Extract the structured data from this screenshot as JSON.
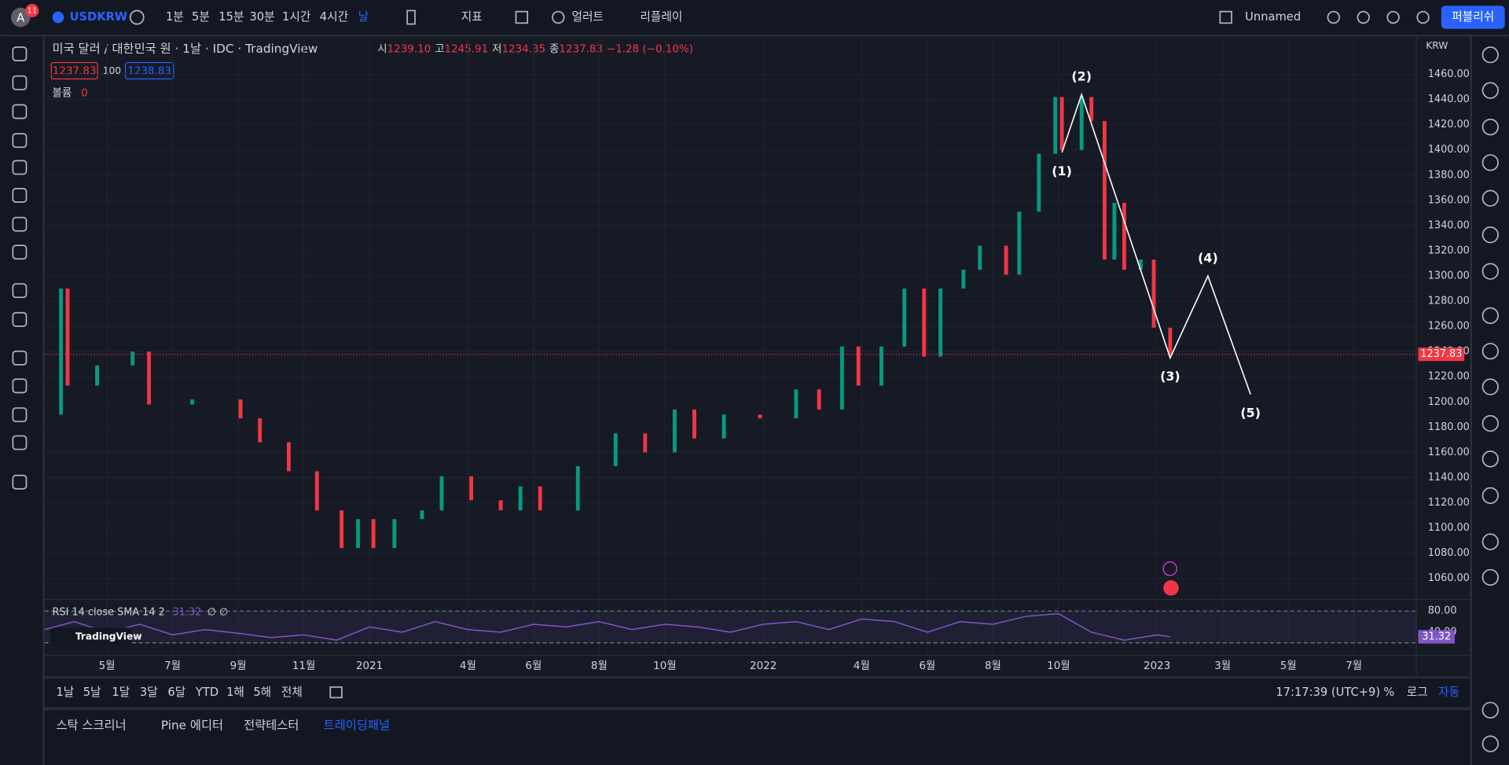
{
  "toolbar": {
    "avatar": "A",
    "badge": "11",
    "symbol": "USDKRW",
    "intervals": [
      "1분",
      "5분",
      "15분",
      "30분",
      "1시간",
      "4시간",
      "날"
    ],
    "indicators": "지표",
    "alert": "얼러트",
    "replay": "리플레이",
    "layout": "Unnamed",
    "publish": "퍼블리쉬"
  },
  "legend": {
    "title": "미국 달러 / 대한민국 원 · 1날 · IDC · TradingView",
    "ohlc": [
      {
        "label": "시",
        "value": "1239.10"
      },
      {
        "label": "고",
        "value": "1245.91"
      },
      {
        "label": "저",
        "value": "1234.35"
      },
      {
        "label": "종",
        "value": "1237.83"
      }
    ],
    "change": "−1.28 (−0.10%)",
    "bid": "1237.83",
    "spread": "100",
    "ask": "1238.83",
    "volume_label": "볼륨",
    "volume": "0"
  },
  "chart": {
    "type": "candlestick",
    "currency": "KRW",
    "xlim": [
      2.1,
      43.9
    ],
    "ylim": [
      1044,
      1490
    ],
    "yticks": [
      {
        "value": 1060,
        "label": "1060.00"
      },
      {
        "value": 1080,
        "label": "1080.00"
      },
      {
        "value": 1100,
        "label": "1100.00"
      },
      {
        "value": 1120,
        "label": "1120.00"
      },
      {
        "value": 1140,
        "label": "1140.00"
      },
      {
        "value": 1160,
        "label": "1160.00"
      },
      {
        "value": 1180,
        "label": "1180.00"
      },
      {
        "value": 1200,
        "label": "1200.00"
      },
      {
        "value": 1220,
        "label": "1220.00"
      },
      {
        "value": 1240,
        "label": "1240.00"
      },
      {
        "value": 1260,
        "label": "1260.00"
      },
      {
        "value": 1280,
        "label": "1280.00"
      },
      {
        "value": 1300,
        "label": "1300.00"
      },
      {
        "value": 1320,
        "label": "1320.00"
      },
      {
        "value": 1340,
        "label": "1340.00"
      },
      {
        "value": 1360,
        "label": "1360.00"
      },
      {
        "value": 1380,
        "label": "1380.00"
      },
      {
        "value": 1400,
        "label": "1400.00"
      },
      {
        "value": 1420,
        "label": "1420.00"
      },
      {
        "value": 1440,
        "label": "1440.00"
      },
      {
        "value": 1460,
        "label": "1460.00"
      }
    ],
    "closes": {
      "x": [
        2.1,
        2.6,
        2.8,
        3.7,
        4.78,
        5.28,
        6.6,
        8.07,
        8.66,
        9.54,
        10.4,
        11.15,
        11.65,
        12.12,
        12.76,
        13.6,
        14.2,
        15.1,
        16,
        16.6,
        17.2,
        18.35,
        19.5,
        20.4,
        21.3,
        21.9,
        22.8,
        23.9,
        25,
        25.7,
        26.4,
        26.9,
        27.6,
        28.3,
        28.9,
        29.4,
        30.1,
        30.6,
        31.4,
        31.8,
        32.4,
        32.9,
        33.1,
        33.7,
        34,
        34.4,
        34.7,
        35,
        35.5,
        35.9,
        36.4
      ],
      "y": [
        1190,
        1290,
        1213,
        1229,
        1240,
        1198,
        1202,
        1187,
        1168,
        1145,
        1114,
        1084,
        1107,
        1084,
        1107,
        1114,
        1141,
        1122,
        1114,
        1133,
        1114,
        1149,
        1175,
        1160,
        1194,
        1171,
        1190,
        1187,
        1210,
        1194,
        1244,
        1213,
        1244,
        1290,
        1236,
        1290,
        1305,
        1324,
        1301,
        1351,
        1397,
        1442,
        1400,
        1442,
        1423,
        1313,
        1358,
        1305,
        1313,
        1259,
        1238
      ]
    },
    "last": {
      "value": 1237.83,
      "label": "1237.83"
    },
    "waves": [
      {
        "label": "(1)",
        "x": 33.1,
        "y": 1398
      },
      {
        "label": "(2)",
        "x": 33.7,
        "y": 1444
      },
      {
        "label": "(3)",
        "x": 36.4,
        "y": 1235
      },
      {
        "label": "(4)",
        "x": 37.55,
        "y": 1300
      },
      {
        "label": "(5)",
        "x": 38.85,
        "y": 1206
      }
    ],
    "xaxis": {
      "labels": [
        "5월",
        "7월",
        "9월",
        "11월",
        "2021",
        "4월",
        "6월",
        "8월",
        "10월",
        "2022",
        "4월",
        "6월",
        "8월",
        "10월",
        "2023",
        "3월",
        "5월",
        "7월"
      ],
      "x": [
        4,
        6,
        8,
        10,
        12,
        15,
        17,
        19,
        21,
        24,
        27,
        29,
        31,
        33,
        36,
        38,
        40,
        42
      ]
    }
  },
  "rsi": {
    "title": "RSI 14 close SMA 14 2",
    "value": "31.32",
    "extra": "∅ ∅",
    "ylim": [
      -1.8,
      98.2
    ],
    "yticks": [
      {
        "value": 80,
        "label": "80.00"
      },
      {
        "value": 40,
        "label": "40.00"
      }
    ],
    "levels": [
      80,
      20
    ],
    "x": [
      2.1,
      3,
      4,
      5,
      6,
      7,
      8,
      9,
      10,
      11,
      12,
      13,
      14,
      15,
      16,
      17,
      18,
      19,
      20,
      21,
      22,
      23,
      24,
      25,
      26,
      27,
      28,
      29,
      30,
      31,
      32,
      33,
      34,
      35,
      36,
      36.4
    ],
    "y": [
      45,
      60,
      40,
      55,
      35,
      45,
      38,
      30,
      35,
      25,
      50,
      40,
      60,
      45,
      40,
      55,
      50,
      60,
      45,
      55,
      50,
      40,
      55,
      60,
      45,
      65,
      60,
      40,
      60,
      55,
      70,
      75,
      40,
      25,
      35,
      31.32
    ],
    "last": {
      "value": 31.32,
      "label": "31.32"
    }
  },
  "bottom": {
    "ranges": [
      "1날",
      "5날",
      "1달",
      "3달",
      "6달",
      "YTD",
      "1해",
      "5해",
      "전체"
    ],
    "clock": "17:17:39 (UTC+9)",
    "percent": "%",
    "log": "로그",
    "auto": "자동"
  },
  "panel": {
    "tabs": [
      "스탁 스크리너",
      "Pine 에디터",
      "전략테스터",
      "트레이딩패널"
    ]
  },
  "logo": "TradingView"
}
